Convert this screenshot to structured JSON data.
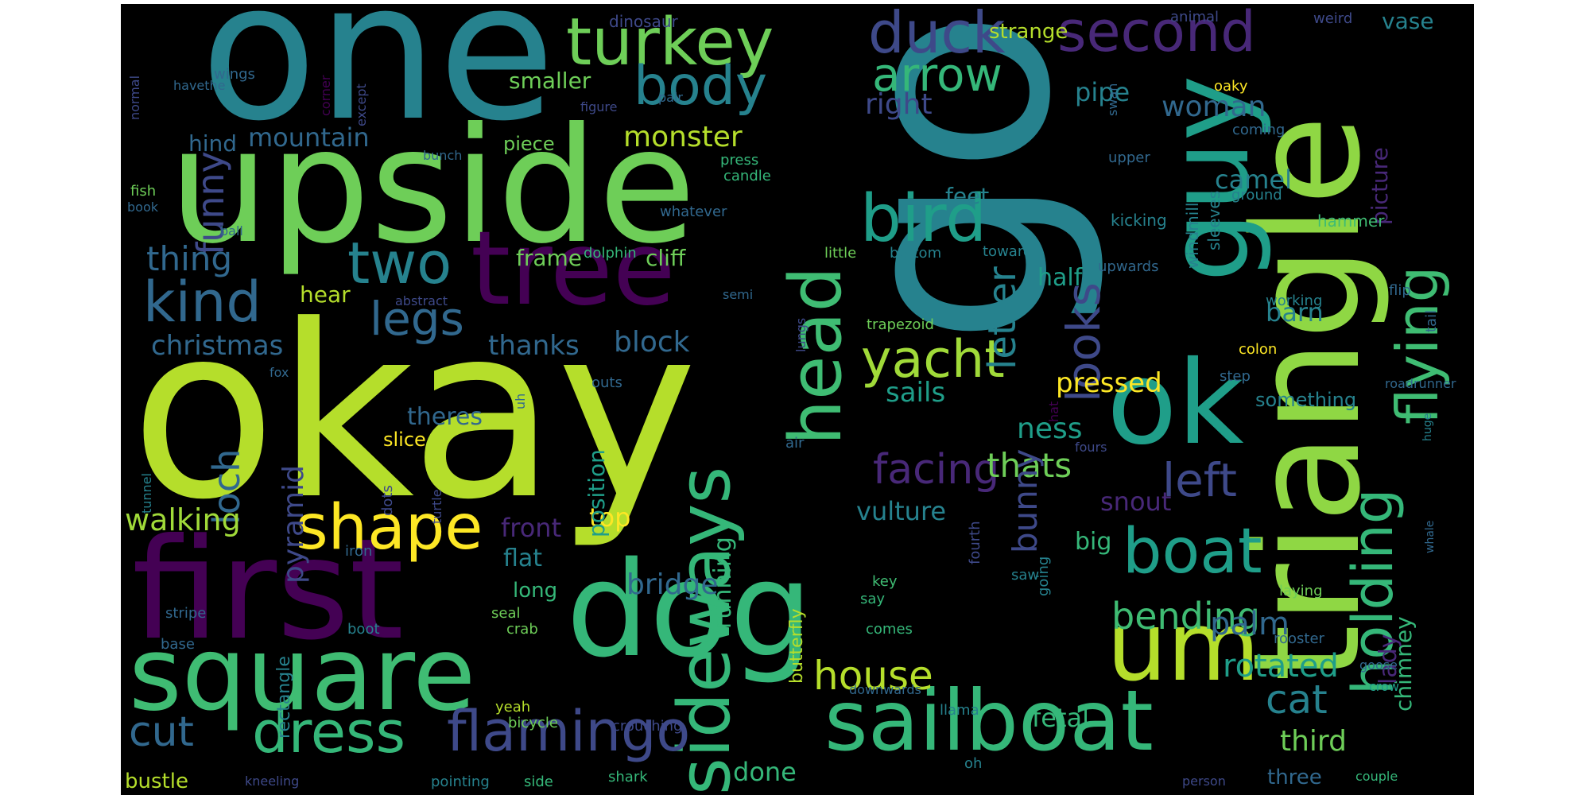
{
  "words": [
    {
      "text": "go",
      "color": "#26828e"
    },
    {
      "text": "okay",
      "color": "#b5de2b"
    },
    {
      "text": "one",
      "color": "#26828e"
    },
    {
      "text": "upside",
      "color": "#6ece58"
    },
    {
      "text": "first",
      "color": "#440154"
    },
    {
      "text": "triangle",
      "color": "#8fd744"
    },
    {
      "text": "dog",
      "color": "#35b779"
    },
    {
      "text": "guy",
      "color": "#1f9e89"
    },
    {
      "text": "ok",
      "color": "#1f9e89"
    },
    {
      "text": "square",
      "color": "#3fbc73"
    },
    {
      "text": "tree",
      "color": "#440154"
    },
    {
      "text": "um",
      "color": "#b5de2b"
    },
    {
      "text": "sailboat",
      "color": "#35b779"
    },
    {
      "text": "sideways",
      "color": "#35b779"
    },
    {
      "text": "head",
      "color": "#3fbc73"
    },
    {
      "text": "boat",
      "color": "#1f9e89"
    },
    {
      "text": "holding",
      "color": "#35b779"
    },
    {
      "text": "flying",
      "color": "#3fbc73"
    },
    {
      "text": "turkey",
      "color": "#6ece58"
    },
    {
      "text": "shape",
      "color": "#fde725"
    },
    {
      "text": "bird",
      "color": "#1f9e89"
    },
    {
      "text": "dress",
      "color": "#35b779"
    },
    {
      "text": "flamingo",
      "color": "#3e4989"
    },
    {
      "text": "duck",
      "color": "#3e4989"
    },
    {
      "text": "second",
      "color": "#482878"
    },
    {
      "text": "kind",
      "color": "#31688e"
    },
    {
      "text": "two",
      "color": "#26828e"
    },
    {
      "text": "body",
      "color": "#26828e"
    },
    {
      "text": "yacht",
      "color": "#a0da39"
    },
    {
      "text": "arrow",
      "color": "#35b779"
    },
    {
      "text": "legs",
      "color": "#31688e"
    },
    {
      "text": "looks",
      "color": "#3e4989"
    },
    {
      "text": "facing",
      "color": "#482878"
    },
    {
      "text": "left",
      "color": "#3e4989"
    },
    {
      "text": "letter",
      "color": "#26828e"
    },
    {
      "text": "house",
      "color": "#b5de2b"
    },
    {
      "text": "cut",
      "color": "#31688e"
    },
    {
      "text": "bending",
      "color": "#3fbc73"
    },
    {
      "text": "funny",
      "color": "#3e4989"
    },
    {
      "text": "loch",
      "color": "#31688e"
    },
    {
      "text": "thats",
      "color": "#6ece58"
    },
    {
      "text": "cat",
      "color": "#26828e"
    },
    {
      "text": "rotated",
      "color": "#1f9e89"
    },
    {
      "text": "walking",
      "color": "#a0da39"
    },
    {
      "text": "bunny",
      "color": "#3e4989"
    },
    {
      "text": "christmas",
      "color": "#31688e"
    },
    {
      "text": "thing",
      "color": "#31688e"
    },
    {
      "text": "pyramid",
      "color": "#3e4989"
    },
    {
      "text": "palm",
      "color": "#31688e"
    },
    {
      "text": "monster",
      "color": "#b5de2b"
    },
    {
      "text": "mountain",
      "color": "#31688e"
    },
    {
      "text": "woman",
      "color": "#31688e"
    },
    {
      "text": "pressed",
      "color": "#fde725"
    },
    {
      "text": "bridge",
      "color": "#31688e"
    },
    {
      "text": "third",
      "color": "#6ece58"
    },
    {
      "text": "right",
      "color": "#3e4989"
    },
    {
      "text": "sails",
      "color": "#1f9e89"
    },
    {
      "text": "block",
      "color": "#31688e"
    },
    {
      "text": "thanks",
      "color": "#31688e"
    },
    {
      "text": "vulture",
      "color": "#26828e"
    },
    {
      "text": "snout",
      "color": "#482878"
    },
    {
      "text": "ness",
      "color": "#1f9e89"
    },
    {
      "text": "top",
      "color": "#fde725"
    },
    {
      "text": "front",
      "color": "#482878"
    },
    {
      "text": "running",
      "color": "#35b779"
    },
    {
      "text": "position",
      "color": "#1f9e89"
    },
    {
      "text": "camel",
      "color": "#26828e"
    },
    {
      "text": "fetal",
      "color": "#35b779"
    },
    {
      "text": "pipe",
      "color": "#26828e"
    },
    {
      "text": "smaller",
      "color": "#6ece58"
    },
    {
      "text": "done",
      "color": "#35b779"
    },
    {
      "text": "barn",
      "color": "#26828e"
    },
    {
      "text": "half",
      "color": "#1f9e89"
    },
    {
      "text": "big",
      "color": "#35b779"
    },
    {
      "text": "theres",
      "color": "#31688e"
    },
    {
      "text": "flat",
      "color": "#26828e"
    },
    {
      "text": "picture",
      "color": "#482878"
    },
    {
      "text": "chimney",
      "color": "#35b779"
    },
    {
      "text": "lady",
      "color": "#482878"
    },
    {
      "text": "frame",
      "color": "#6ece58"
    },
    {
      "text": "cliff",
      "color": "#6ece58"
    },
    {
      "text": "feet",
      "color": "#26828e"
    },
    {
      "text": "hear",
      "color": "#b5de2b"
    },
    {
      "text": "hind",
      "color": "#31688e"
    },
    {
      "text": "long",
      "color": "#35b779"
    },
    {
      "text": "three",
      "color": "#31688e"
    },
    {
      "text": "bustle",
      "color": "#b5de2b"
    },
    {
      "text": "vase",
      "color": "#26828e"
    },
    {
      "text": "strange",
      "color": "#b5de2b"
    },
    {
      "text": "something",
      "color": "#26828e"
    },
    {
      "text": "slice",
      "color": "#fde725"
    },
    {
      "text": "butterfly",
      "color": "#b5de2b"
    },
    {
      "text": "piece",
      "color": "#6ece58"
    },
    {
      "text": "rectangle",
      "color": "#26828e"
    },
    {
      "text": "windmill",
      "color": "#26828e"
    },
    {
      "text": "sleeves",
      "color": "#26828e"
    },
    {
      "text": "kicking",
      "color": "#26828e"
    },
    {
      "text": "hammer",
      "color": "#3fbc73"
    },
    {
      "text": "dinosaur",
      "color": "#3e4989"
    },
    {
      "text": "animal",
      "color": "#3e4989"
    },
    {
      "text": "weird",
      "color": "#3e4989"
    },
    {
      "text": "swan",
      "color": "#31688e"
    },
    {
      "text": "oaky",
      "color": "#fde725"
    },
    {
      "text": "coming",
      "color": "#31688e"
    },
    {
      "text": "upper",
      "color": "#31688e"
    },
    {
      "text": "ground",
      "color": "#26828e"
    },
    {
      "text": "press",
      "color": "#35b779"
    },
    {
      "text": "candle",
      "color": "#35b779"
    },
    {
      "text": "whatever",
      "color": "#31688e"
    },
    {
      "text": "dolphin",
      "color": "#35b779"
    },
    {
      "text": "little",
      "color": "#6ece58"
    },
    {
      "text": "bottom",
      "color": "#26828e"
    },
    {
      "text": "toward",
      "color": "#26828e"
    },
    {
      "text": "upwards",
      "color": "#31688e"
    },
    {
      "text": "working",
      "color": "#26828e"
    },
    {
      "text": "flip",
      "color": "#31688e"
    },
    {
      "text": "tail",
      "color": "#31688e"
    },
    {
      "text": "trapezoid",
      "color": "#6ece58"
    },
    {
      "text": "roadrunner",
      "color": "#31688e"
    },
    {
      "text": "colon",
      "color": "#fde725"
    },
    {
      "text": "step",
      "color": "#31688e"
    },
    {
      "text": "hat",
      "color": "#440154"
    },
    {
      "text": "uh",
      "color": "#31688e"
    },
    {
      "text": "outs",
      "color": "#31688e"
    },
    {
      "text": "air",
      "color": "#31688e"
    },
    {
      "text": "fours",
      "color": "#3e4989"
    },
    {
      "text": "huge",
      "color": "#26828e"
    },
    {
      "text": "semi",
      "color": "#31688e"
    },
    {
      "text": "lungs",
      "color": "#3e4989"
    },
    {
      "text": "abstract",
      "color": "#3e4989"
    },
    {
      "text": "fox",
      "color": "#31688e"
    },
    {
      "text": "dots",
      "color": "#3e4989"
    },
    {
      "text": "turtle",
      "color": "#3e4989"
    },
    {
      "text": "tunnel",
      "color": "#26828e"
    },
    {
      "text": "iron",
      "color": "#31688e"
    },
    {
      "text": "stripe",
      "color": "#31688e"
    },
    {
      "text": "base",
      "color": "#31688e"
    },
    {
      "text": "boot",
      "color": "#26828e"
    },
    {
      "text": "seal",
      "color": "#6ece58"
    },
    {
      "text": "crab",
      "color": "#6ece58"
    },
    {
      "text": "key",
      "color": "#3fbc73"
    },
    {
      "text": "say",
      "color": "#35b779"
    },
    {
      "text": "comes",
      "color": "#35b779"
    },
    {
      "text": "fourth",
      "color": "#3e4989"
    },
    {
      "text": "saw",
      "color": "#26828e"
    },
    {
      "text": "going",
      "color": "#26828e"
    },
    {
      "text": "laying",
      "color": "#6ece58"
    },
    {
      "text": "rooster",
      "color": "#31688e"
    },
    {
      "text": "whale",
      "color": "#31688e"
    },
    {
      "text": "goose",
      "color": "#31688e"
    },
    {
      "text": "crow",
      "color": "#1f9e89"
    },
    {
      "text": "couple",
      "color": "#35b779"
    },
    {
      "text": "person",
      "color": "#3e4989"
    },
    {
      "text": "downwards",
      "color": "#31688e"
    },
    {
      "text": "llama",
      "color": "#26828e"
    },
    {
      "text": "oh",
      "color": "#26828e"
    },
    {
      "text": "shark",
      "color": "#35b779"
    },
    {
      "text": "pointing",
      "color": "#26828e"
    },
    {
      "text": "side",
      "color": "#35b779"
    },
    {
      "text": "crouching",
      "color": "#3e4989"
    },
    {
      "text": "bicycle",
      "color": "#6ece58"
    },
    {
      "text": "yeah",
      "color": "#b5de2b"
    },
    {
      "text": "kneeling",
      "color": "#3e4989"
    },
    {
      "text": "normal",
      "color": "#3e4989"
    },
    {
      "text": "havethe",
      "color": "#31688e"
    },
    {
      "text": "wings",
      "color": "#31688e"
    },
    {
      "text": "corner",
      "color": "#440154"
    },
    {
      "text": "except",
      "color": "#3e4989"
    },
    {
      "text": "bunch",
      "color": "#31688e"
    },
    {
      "text": "figure",
      "color": "#3e4989"
    },
    {
      "text": "pair",
      "color": "#31688e"
    },
    {
      "text": "fish",
      "color": "#6ece58"
    },
    {
      "text": "book",
      "color": "#31688e"
    },
    {
      "text": "ball",
      "color": "#31688e"
    }
  ]
}
